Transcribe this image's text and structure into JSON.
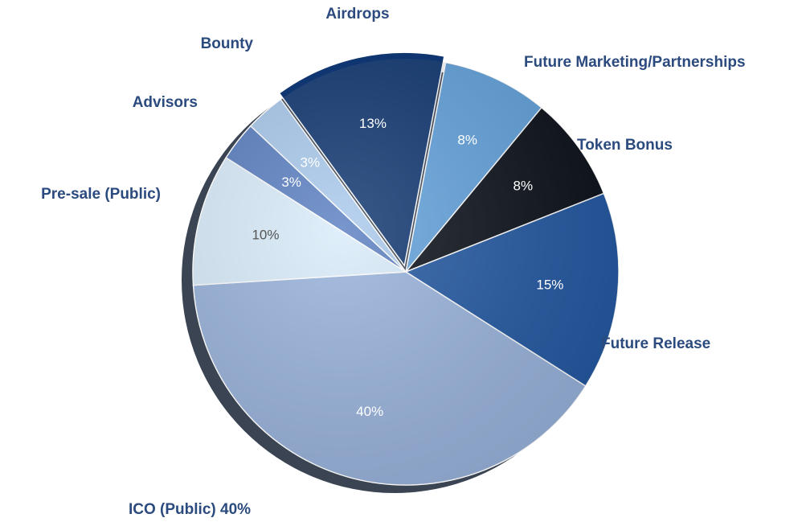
{
  "chart_data": {
    "type": "pie",
    "categories": [
      "Airdrops",
      "Future Marketing/Partnerships",
      "Token Bonus",
      "Future Release",
      "ICO (Public) 40%",
      "Pre-sale (Public)",
      "Advisors",
      "Bounty"
    ],
    "values": [
      13,
      8,
      8,
      15,
      40,
      10,
      3,
      3
    ],
    "value_labels": [
      "13%",
      "8%",
      "8%",
      "15%",
      "40%",
      "10%",
      "3%",
      "3%"
    ],
    "colors": [
      "#0f3670",
      "#62a2dc",
      "#0b1019",
      "#2257a1",
      "#98b3dc",
      "#d9ecfa",
      "#5a7fc1",
      "#a9c9ec"
    ]
  }
}
